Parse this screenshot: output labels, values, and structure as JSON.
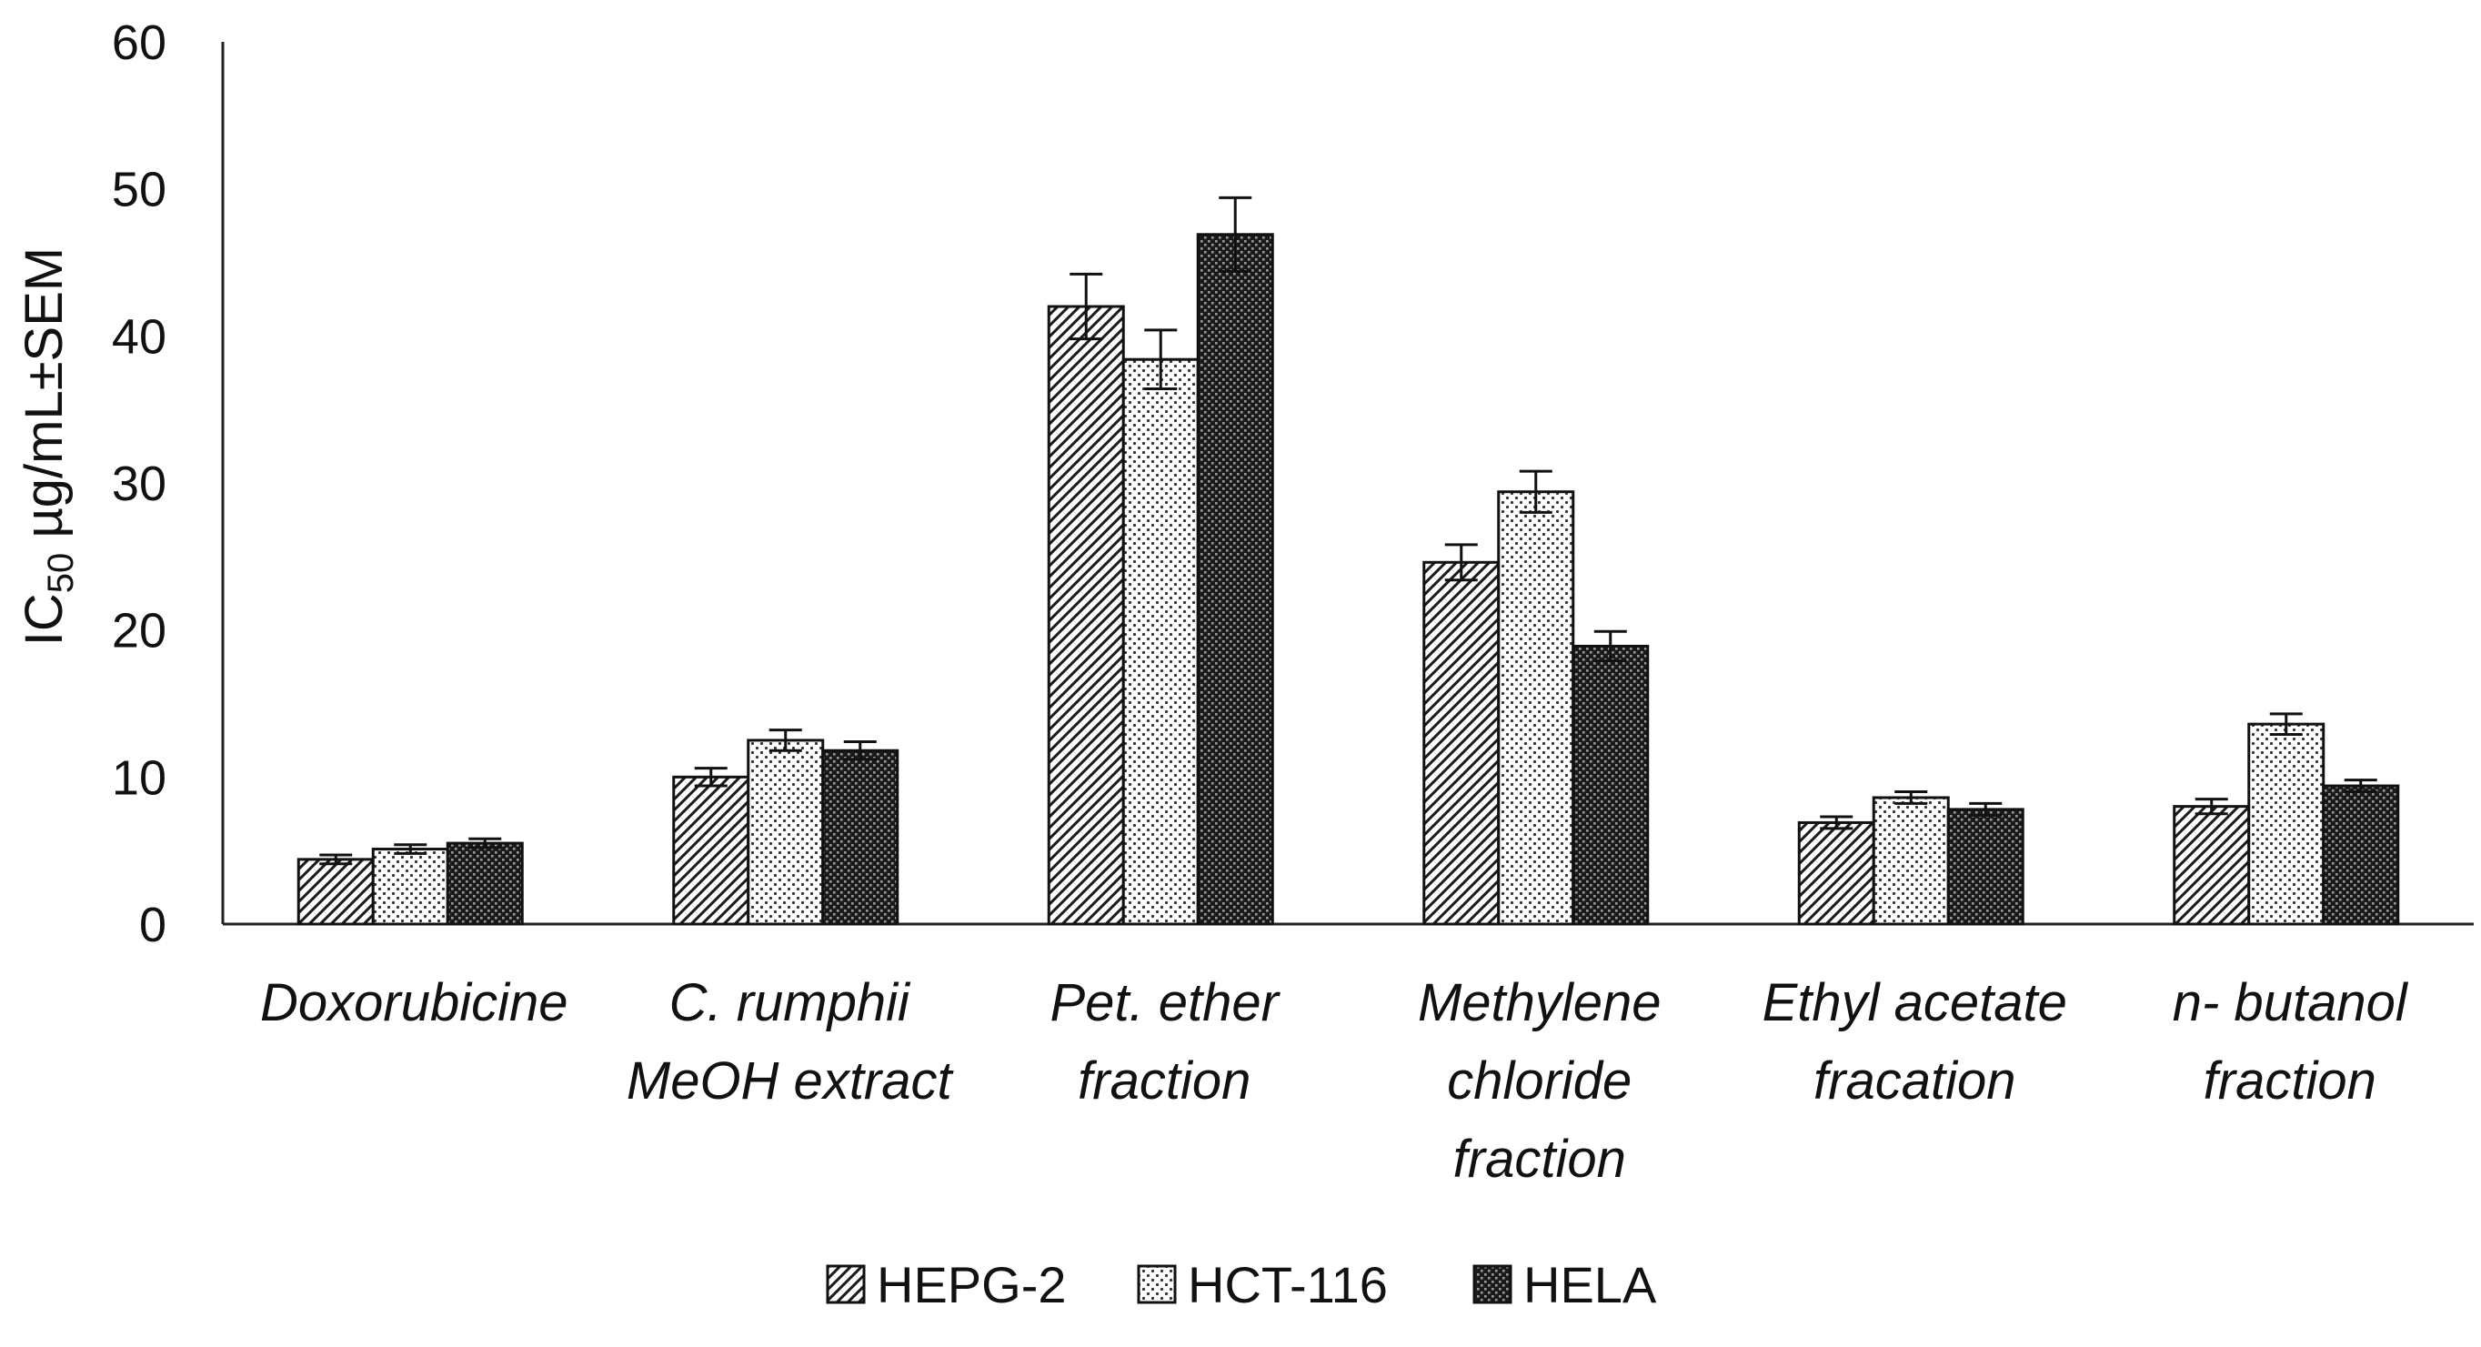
{
  "chart_data": {
    "type": "bar",
    "title": "",
    "xlabel": "",
    "ylabel_main": "IC",
    "ylabel_sub": "50",
    "ylabel_rest": " µg/mL±SEM",
    "ylim": [
      0,
      60
    ],
    "yticks": [
      0,
      10,
      20,
      30,
      40,
      50,
      60
    ],
    "categories": [
      [
        "Doxorubicine"
      ],
      [
        "C. rumphii",
        "MeOH extract"
      ],
      [
        "Pet. ether",
        "fraction"
      ],
      [
        "Methylene",
        "chloride",
        "fraction"
      ],
      [
        "Ethyl acetate",
        "fracation"
      ],
      [
        "n- butanol",
        "fraction"
      ]
    ],
    "series": [
      {
        "name": "HEPG-2",
        "pattern": "diagonal",
        "values": [
          4.4,
          10.0,
          42.0,
          24.6,
          6.9,
          8.0
        ],
        "errors": [
          0.3,
          0.6,
          2.2,
          1.2,
          0.4,
          0.5
        ]
      },
      {
        "name": "HCT-116",
        "pattern": "dots",
        "values": [
          5.1,
          12.5,
          38.4,
          29.4,
          8.6,
          13.6
        ],
        "errors": [
          0.3,
          0.7,
          2.0,
          1.4,
          0.4,
          0.7
        ]
      },
      {
        "name": "HELA",
        "pattern": "dense",
        "values": [
          5.5,
          11.8,
          46.9,
          18.9,
          7.8,
          9.4
        ],
        "errors": [
          0.3,
          0.6,
          2.5,
          1.0,
          0.4,
          0.4
        ]
      }
    ],
    "legend_position": "bottom",
    "grid": false
  }
}
